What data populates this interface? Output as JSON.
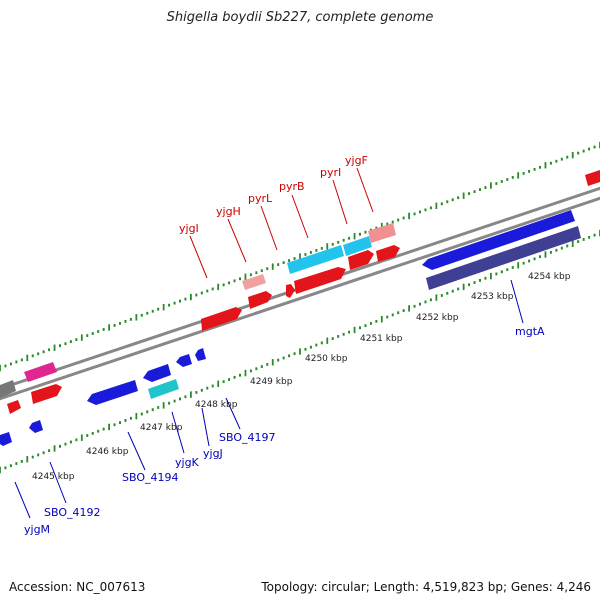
{
  "title": "Shigella boydii Sb227, complete genome",
  "footer": {
    "accession": "Accession: NC_007613",
    "stats": "Topology: circular; Length: 4,519,823 bp; Genes: 4,246"
  },
  "colors": {
    "backbone": "#8c8c8c",
    "tick": "#2a8a2a",
    "forward_label": "#cc0000",
    "reverse_label": "#0000bb",
    "kbp_label": "#222222"
  },
  "ruler": {
    "unit": "kbp",
    "labels": [
      "4245 kbp",
      "4246 kbp",
      "4247 kbp",
      "4248 kbp",
      "4249 kbp",
      "4250 kbp",
      "4251 kbp",
      "4252 kbp",
      "4253 kbp",
      "4254 kbp"
    ]
  },
  "forward_genes": [
    {
      "name": "yjgI",
      "label": "yjgI"
    },
    {
      "name": "yjgH",
      "label": "yjgH"
    },
    {
      "name": "pyrL",
      "label": "pyrL"
    },
    {
      "name": "pyrB",
      "label": "pyrB"
    },
    {
      "name": "pyrI",
      "label": "pyrI"
    },
    {
      "name": "yjgF",
      "label": "yjgF"
    }
  ],
  "reverse_genes": [
    {
      "name": "yjgM",
      "label": "yjgM"
    },
    {
      "name": "SBO_4192",
      "label": "SBO_4192"
    },
    {
      "name": "SBO_4194",
      "label": "SBO_4194"
    },
    {
      "name": "yjgK",
      "label": "yjgK"
    },
    {
      "name": "yjgJ",
      "label": "yjgJ"
    },
    {
      "name": "SBO_4197",
      "label": "SBO_4197"
    },
    {
      "name": "mgtA",
      "label": "mgtA"
    }
  ]
}
